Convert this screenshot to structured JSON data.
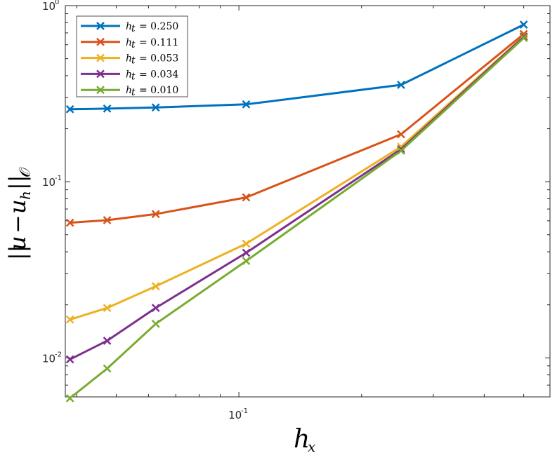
{
  "chart_data": {
    "type": "line",
    "x_scale": "log",
    "y_scale": "log",
    "xlabel": "h_x",
    "ylabel": "||u − u_h||_O",
    "xlim": [
      0.0375,
      0.58
    ],
    "ylim": [
      0.006,
      1
    ],
    "grid": false,
    "legend_location": "top-left",
    "x_ticks": [
      {
        "value": 0.1,
        "base": "10",
        "exp": "-1"
      }
    ],
    "y_ticks": [
      {
        "value": 1,
        "base": "10",
        "exp": "0"
      },
      {
        "value": 0.1,
        "base": "10",
        "exp": "-1"
      },
      {
        "value": 0.01,
        "base": "10",
        "exp": "-2"
      }
    ],
    "x": [
      0.0385,
      0.0475,
      0.0625,
      0.1042,
      0.25,
      0.5
    ],
    "series": [
      {
        "name": "h_t = 0.250",
        "legend_value": "0.250",
        "color": "#0072BD",
        "values": [
          0.258,
          0.26,
          0.264,
          0.275,
          0.355,
          0.78
        ]
      },
      {
        "name": "h_t = 0.111",
        "legend_value": "0.111",
        "color": "#D95319",
        "values": [
          0.0585,
          0.0605,
          0.0655,
          0.0815,
          0.186,
          0.69
        ]
      },
      {
        "name": "h_t = 0.053",
        "legend_value": "0.053",
        "color": "#EDB120",
        "values": [
          0.0165,
          0.0192,
          0.0255,
          0.0445,
          0.158,
          0.67
        ]
      },
      {
        "name": "h_t = 0.034",
        "legend_value": "0.034",
        "color": "#7E2F8E",
        "values": [
          0.0098,
          0.0125,
          0.0192,
          0.0395,
          0.153,
          0.665
        ]
      },
      {
        "name": "h_t = 0.010",
        "legend_value": "0.010",
        "color": "#77AC30",
        "values": [
          0.0059,
          0.0087,
          0.0156,
          0.0355,
          0.15,
          0.655
        ]
      }
    ]
  }
}
